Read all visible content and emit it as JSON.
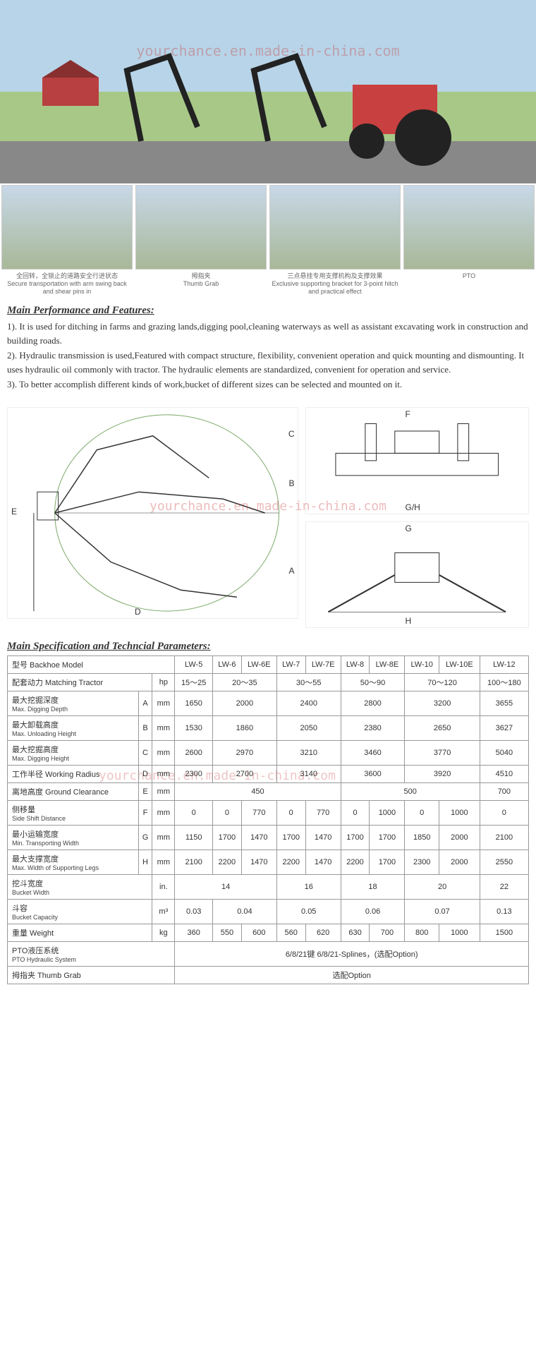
{
  "watermark": "yourchance.en.made-in-china.com",
  "thumbs": [
    {
      "cap_cn": "全回转，全锁止的道路安全行进状态",
      "cap_en": "Secure transportation with arm swing back and shear pins in"
    },
    {
      "cap_cn": "拇指夹",
      "cap_en": "Thumb Grab"
    },
    {
      "cap_cn": "三点悬挂专用支撑机构及支撑效果",
      "cap_en": "Exclusive supporting bracket for 3-point hitch and practical effect"
    },
    {
      "cap_cn": "",
      "cap_en": "PTO"
    }
  ],
  "perf_title": "Main Performance and Features:",
  "perf_items": [
    "1). It is used for ditching in farms and grazing lands,digging pool,cleaning waterways as well as assistant excavating work in construction and building roads.",
    "2). Hydraulic transmission is used,Featured with compact structure, flexibility, convenient operation and quick mounting and dismounting. It uses hydraulic oil commonly with tractor. The hydraulic elements are standardized, convenient for operation and service.",
    "3). To better accomplish different kinds of work,bucket of different sizes can be selected and mounted on it."
  ],
  "diagram_labels": {
    "A": "A",
    "B": "B",
    "C": "C",
    "D": "D",
    "E": "E",
    "F": "F",
    "G": "G",
    "H": "H",
    "GH": "G/H"
  },
  "spec_title": "Main Specification and Techncial Parameters:",
  "table": {
    "header_model_cn": "型号 Backhoe Model",
    "models": [
      "LW-5",
      "LW-6",
      "LW-6E",
      "LW-7",
      "LW-7E",
      "LW-8",
      "LW-8E",
      "LW-10",
      "LW-10E",
      "LW-12"
    ],
    "rows": [
      {
        "label_cn": "配套动力 Matching Tractor",
        "sym": "",
        "unit": "hp",
        "cells": [
          {
            "v": "15～25",
            "span": 1
          },
          {
            "v": "20～35",
            "span": 2
          },
          {
            "v": "30～55",
            "span": 2
          },
          {
            "v": "50～90",
            "span": 2
          },
          {
            "v": "70～120",
            "span": 2
          },
          {
            "v": "100～180",
            "span": 1
          }
        ]
      },
      {
        "label_cn": "最大挖掘深度",
        "label_en": "Max. Digging Depth",
        "sym": "A",
        "unit": "mm",
        "cells": [
          {
            "v": "1650",
            "span": 1
          },
          {
            "v": "2000",
            "span": 2
          },
          {
            "v": "2400",
            "span": 2
          },
          {
            "v": "2800",
            "span": 2
          },
          {
            "v": "3200",
            "span": 2
          },
          {
            "v": "3655",
            "span": 1
          }
        ]
      },
      {
        "label_cn": "最大卸载高度",
        "label_en": "Max. Unloading Height",
        "sym": "B",
        "unit": "mm",
        "cells": [
          {
            "v": "1530",
            "span": 1
          },
          {
            "v": "1860",
            "span": 2
          },
          {
            "v": "2050",
            "span": 2
          },
          {
            "v": "2380",
            "span": 2
          },
          {
            "v": "2650",
            "span": 2
          },
          {
            "v": "3627",
            "span": 1
          }
        ]
      },
      {
        "label_cn": "最大挖掘高度",
        "label_en": "Max. Digging Height",
        "sym": "C",
        "unit": "mm",
        "cells": [
          {
            "v": "2600",
            "span": 1
          },
          {
            "v": "2970",
            "span": 2
          },
          {
            "v": "3210",
            "span": 2
          },
          {
            "v": "3460",
            "span": 2
          },
          {
            "v": "3770",
            "span": 2
          },
          {
            "v": "5040",
            "span": 1
          }
        ]
      },
      {
        "label_cn": "工作半径 Working Radius",
        "sym": "D",
        "unit": "mm",
        "cells": [
          {
            "v": "2300",
            "span": 1
          },
          {
            "v": "2700",
            "span": 2
          },
          {
            "v": "3140",
            "span": 2
          },
          {
            "v": "3600",
            "span": 2
          },
          {
            "v": "3920",
            "span": 2
          },
          {
            "v": "4510",
            "span": 1
          }
        ]
      },
      {
        "label_cn": "离地高度 Ground Clearance",
        "sym": "E",
        "unit": "mm",
        "cells": [
          {
            "v": "450",
            "span": 5
          },
          {
            "v": "500",
            "span": 4
          },
          {
            "v": "700",
            "span": 1
          }
        ]
      },
      {
        "label_cn": "侧移量",
        "label_en": "Side Shift Distance",
        "sym": "F",
        "unit": "mm",
        "cells": [
          {
            "v": "0",
            "span": 1
          },
          {
            "v": "0",
            "span": 1
          },
          {
            "v": "770",
            "span": 1
          },
          {
            "v": "0",
            "span": 1
          },
          {
            "v": "770",
            "span": 1
          },
          {
            "v": "0",
            "span": 1
          },
          {
            "v": "1000",
            "span": 1
          },
          {
            "v": "0",
            "span": 1
          },
          {
            "v": "1000",
            "span": 1
          },
          {
            "v": "0",
            "span": 1
          }
        ]
      },
      {
        "label_cn": "最小运输宽度",
        "label_en": "Min. Transporting Width",
        "sym": "G",
        "unit": "mm",
        "cells": [
          {
            "v": "1150",
            "span": 1
          },
          {
            "v": "1700",
            "span": 1
          },
          {
            "v": "1470",
            "span": 1
          },
          {
            "v": "1700",
            "span": 1
          },
          {
            "v": "1470",
            "span": 1
          },
          {
            "v": "1700",
            "span": 1
          },
          {
            "v": "1700",
            "span": 1
          },
          {
            "v": "1850",
            "span": 1
          },
          {
            "v": "2000",
            "span": 1
          },
          {
            "v": "2100",
            "span": 1
          }
        ]
      },
      {
        "label_cn": "最大支撑宽度",
        "label_en": "Max. Width of Supporting Legs",
        "sym": "H",
        "unit": "mm",
        "cells": [
          {
            "v": "2100",
            "span": 1
          },
          {
            "v": "2200",
            "span": 1
          },
          {
            "v": "1470",
            "span": 1
          },
          {
            "v": "2200",
            "span": 1
          },
          {
            "v": "1470",
            "span": 1
          },
          {
            "v": "2200",
            "span": 1
          },
          {
            "v": "1700",
            "span": 1
          },
          {
            "v": "2300",
            "span": 1
          },
          {
            "v": "2000",
            "span": 1
          },
          {
            "v": "2550",
            "span": 1
          }
        ]
      },
      {
        "label_cn": "挖斗宽度",
        "label_en": "Bucket Width",
        "sym": "",
        "unit": "in.",
        "cells": [
          {
            "v": "14",
            "span": 3
          },
          {
            "v": "16",
            "span": 2
          },
          {
            "v": "18",
            "span": 2
          },
          {
            "v": "20",
            "span": 2
          },
          {
            "v": "22",
            "span": 1
          }
        ]
      },
      {
        "label_cn": "斗容",
        "label_en": "Bucket Capacity",
        "sym": "",
        "unit": "m³",
        "cells": [
          {
            "v": "0.03",
            "span": 1
          },
          {
            "v": "0.04",
            "span": 2
          },
          {
            "v": "0.05",
            "span": 2
          },
          {
            "v": "0.06",
            "span": 2
          },
          {
            "v": "0.07",
            "span": 2
          },
          {
            "v": "0.13",
            "span": 1
          }
        ]
      },
      {
        "label_cn": "重量 Weight",
        "sym": "",
        "unit": "kg",
        "cells": [
          {
            "v": "360",
            "span": 1
          },
          {
            "v": "550",
            "span": 1
          },
          {
            "v": "600",
            "span": 1
          },
          {
            "v": "560",
            "span": 1
          },
          {
            "v": "620",
            "span": 1
          },
          {
            "v": "630",
            "span": 1
          },
          {
            "v": "700",
            "span": 1
          },
          {
            "v": "800",
            "span": 1
          },
          {
            "v": "1000",
            "span": 1
          },
          {
            "v": "1500",
            "span": 1
          }
        ]
      },
      {
        "label_cn": "PTO液压系统",
        "label_en": "PTO Hydraulic System",
        "sym": "",
        "unit": "",
        "cells": [
          {
            "v": "6/8/21键    6/8/21-Splines，(选配Option)",
            "span": 10
          }
        ]
      },
      {
        "label_cn": "拇指夹 Thumb Grab",
        "sym": "",
        "unit": "",
        "cells": [
          {
            "v": "选配Option",
            "span": 10
          }
        ]
      }
    ]
  },
  "colors": {
    "border": "#999",
    "wm": "rgba(200,60,60,0.35)",
    "diagram_line": "#7aa868"
  }
}
